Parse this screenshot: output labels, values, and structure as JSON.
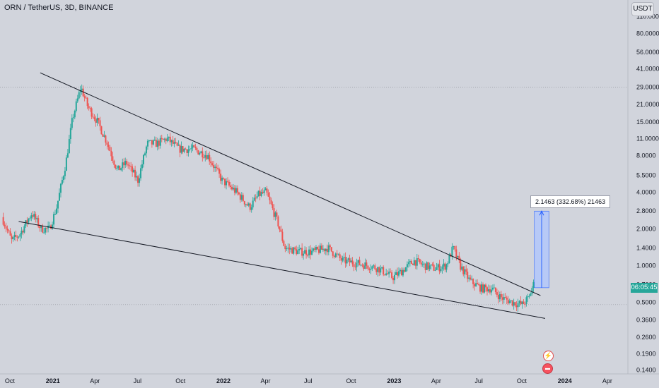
{
  "header": {
    "title": "ORN / TetherUS, 3D, BINANCE",
    "unit_button": "USDT"
  },
  "price_badge": {
    "text": "06:05:45",
    "color": "#26a69a"
  },
  "measure_label": "2.1463 (332.68%) 21463",
  "colors": {
    "up": "#26a69a",
    "down": "#ef5350",
    "trendline": "#131722",
    "measure_fill": "#aec6ff",
    "measure_line": "#2962ff"
  },
  "icons": {
    "lightning": "lightning-icon",
    "flag": "us-flag-icon"
  },
  "chart_data": {
    "type": "candlestick",
    "title": "ORN / TetherUS, 3D, BINANCE",
    "y_scale": "log",
    "ylim": [
      0.13,
      150
    ],
    "grid": false,
    "y_ticks": [
      "110.0000",
      "80.0000",
      "56.0000",
      "41.0000",
      "29.0000",
      "21.0000",
      "15.0000",
      "11.0000",
      "8.0000",
      "5.5000",
      "4.0000",
      "2.8000",
      "2.0000",
      "1.4000",
      "1.0000",
      "0.7000",
      "0.5000",
      "0.3600",
      "0.2600",
      "0.1900",
      "0.1400"
    ],
    "x_ticks": [
      "Oct",
      "2021",
      "Apr",
      "Jul",
      "Oct",
      "2022",
      "Apr",
      "Jul",
      "Oct",
      "2023",
      "Apr",
      "Jul",
      "Oct",
      "2024",
      "Apr"
    ],
    "x_tick_dates": [
      "2020-10-01",
      "2021-01-01",
      "2021-04-01",
      "2021-07-01",
      "2021-10-01",
      "2022-01-01",
      "2022-04-01",
      "2022-07-01",
      "2022-10-01",
      "2023-01-01",
      "2023-04-01",
      "2023-07-01",
      "2023-10-01",
      "2024-01-01",
      "2024-04-01"
    ],
    "x_range": [
      "2020-09-10",
      "2024-05-15"
    ],
    "price_path": [
      [
        "2020-09-17",
        2.5
      ],
      [
        "2020-10-08",
        1.6
      ],
      [
        "2020-10-25",
        1.8
      ],
      [
        "2020-11-20",
        2.7
      ],
      [
        "2020-12-10",
        2.0
      ],
      [
        "2020-12-28",
        2.0
      ],
      [
        "2021-01-12",
        3.0
      ],
      [
        "2021-02-01",
        7.0
      ],
      [
        "2021-02-15",
        16
      ],
      [
        "2021-03-05",
        29
      ],
      [
        "2021-03-20",
        20
      ],
      [
        "2021-04-10",
        15
      ],
      [
        "2021-05-01",
        10
      ],
      [
        "2021-05-22",
        6
      ],
      [
        "2021-06-10",
        7
      ],
      [
        "2021-07-05",
        5
      ],
      [
        "2021-07-25",
        10
      ],
      [
        "2021-08-15",
        10
      ],
      [
        "2021-09-05",
        11
      ],
      [
        "2021-10-01",
        9
      ],
      [
        "2021-11-01",
        9
      ],
      [
        "2021-12-01",
        8
      ],
      [
        "2022-01-01",
        5
      ],
      [
        "2022-02-01",
        4
      ],
      [
        "2022-03-01",
        3
      ],
      [
        "2022-03-20",
        3.8
      ],
      [
        "2022-04-05",
        4
      ],
      [
        "2022-05-01",
        2.2
      ],
      [
        "2022-05-15",
        1.4
      ],
      [
        "2022-06-15",
        1.3
      ],
      [
        "2022-07-15",
        1.3
      ],
      [
        "2022-08-15",
        1.4
      ],
      [
        "2022-09-15",
        1.1
      ],
      [
        "2022-10-15",
        1.05
      ],
      [
        "2022-11-10",
        1.0
      ],
      [
        "2022-12-01",
        0.95
      ],
      [
        "2023-01-01",
        0.8
      ],
      [
        "2023-01-20",
        0.9
      ],
      [
        "2023-02-15",
        1.1
      ],
      [
        "2023-03-10",
        1.0
      ],
      [
        "2023-04-01",
        0.95
      ],
      [
        "2023-04-25",
        1.0
      ],
      [
        "2023-05-10",
        1.4
      ],
      [
        "2023-05-25",
        1.0
      ],
      [
        "2023-06-15",
        0.75
      ],
      [
        "2023-07-10",
        0.65
      ],
      [
        "2023-08-01",
        0.65
      ],
      [
        "2023-08-20",
        0.55
      ],
      [
        "2023-09-15",
        0.5
      ],
      [
        "2023-10-05",
        0.48
      ],
      [
        "2023-10-20",
        0.55
      ],
      [
        "2023-10-28",
        0.7
      ]
    ],
    "trendlines": [
      {
        "from": [
          "2020-12-05",
          38
        ],
        "to": [
          "2023-11-10",
          0.57
        ]
      },
      {
        "from": [
          "2020-10-20",
          2.3
        ],
        "to": [
          "2023-11-20",
          0.37
        ]
      }
    ],
    "measure": {
      "from": [
        "2023-10-28",
        0.66
      ],
      "to": [
        "2023-11-28",
        2.8
      ],
      "label": "2.1463 (332.68%) 21463"
    }
  }
}
